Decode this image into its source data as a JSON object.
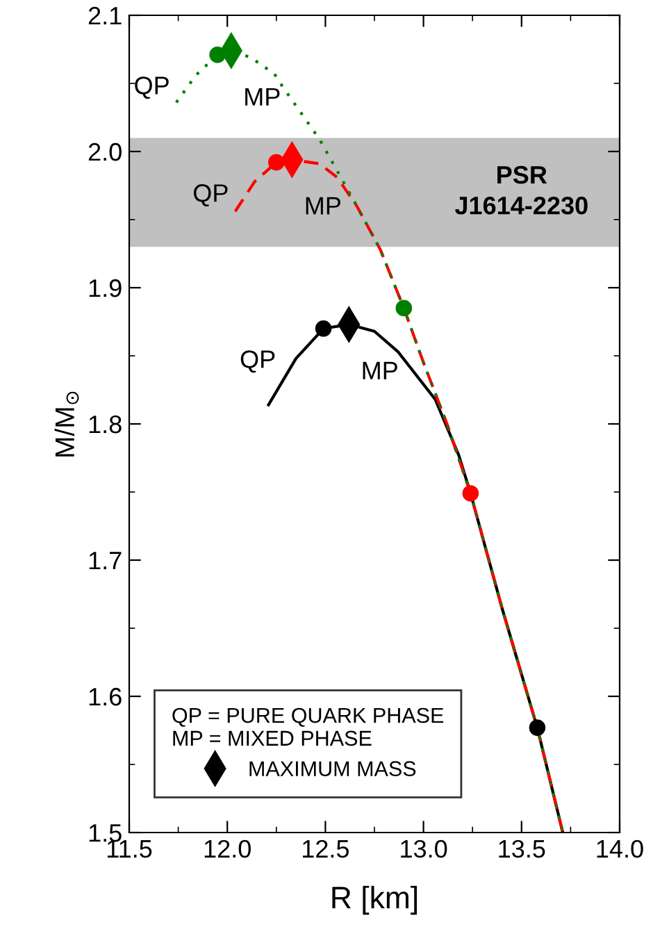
{
  "chart_data": {
    "type": "line",
    "xlabel": "R [km]",
    "ylabel": "M/M$_{⊙}$",
    "xlim": [
      11.5,
      14.0
    ],
    "xticks": [
      11.5,
      {
        "value": 12,
        "label": "12.0"
      },
      12.5,
      {
        "value": 13,
        "label": "13.0"
      },
      13.5,
      {
        "value": 14,
        "label": "14.0"
      }
    ],
    "ylim": [
      1.5,
      2.1
    ],
    "yticks": [
      1.5,
      1.6,
      1.7,
      1.8,
      1.9,
      {
        "value": 2,
        "label": "2.0"
      },
      2.1
    ],
    "grid": false,
    "legend": "bottom left",
    "series": [
      {
        "line_style": "solid",
        "color": "#000000",
        "x": [
          12.21,
          12.35,
          12.49,
          12.62,
          12.75,
          12.87,
          13.06,
          13.18,
          13.24,
          13.4,
          13.58,
          13.71
        ],
        "values": [
          1.814,
          1.848,
          1.87,
          1.873,
          1.868,
          1.853,
          1.818,
          1.777,
          1.749,
          1.665,
          1.577,
          1.5
        ]
      },
      {
        "line_style": "dashed",
        "color": "#ff0000",
        "x": [
          12.04,
          12.14,
          12.25,
          12.33,
          12.47,
          12.56,
          12.66,
          12.78,
          12.9,
          13.0,
          13.12,
          13.24,
          13.4,
          13.58,
          13.71
        ],
        "values": [
          1.956,
          1.978,
          1.992,
          1.994,
          1.991,
          1.981,
          1.96,
          1.928,
          1.885,
          1.845,
          1.8,
          1.749,
          1.665,
          1.577,
          1.5
        ]
      },
      {
        "line_style": "dotted",
        "color": "#008000",
        "x": [
          11.74,
          11.84,
          11.95,
          12.02,
          12.12,
          12.24,
          12.28,
          12.47,
          12.66,
          12.78,
          12.9,
          13.0,
          13.12,
          13.24,
          13.4,
          13.58,
          13.71
        ],
        "values": [
          2.036,
          2.056,
          2.071,
          2.074,
          2.069,
          2.057,
          2.048,
          2.009,
          1.96,
          1.928,
          1.885,
          1.845,
          1.8,
          1.749,
          1.665,
          1.577,
          1.5
        ]
      },
      {
        "type": "scatter",
        "marker": "circle",
        "color": "#000000",
        "x": [
          12.49,
          13.58
        ],
        "values": [
          1.87,
          1.577
        ]
      },
      {
        "type": "scatter",
        "marker": "circle",
        "color": "#ff0000",
        "x": [
          12.25,
          13.24
        ],
        "values": [
          1.992,
          1.749
        ]
      },
      {
        "type": "scatter",
        "marker": "circle",
        "color": "#008000",
        "x": [
          11.95,
          12.9
        ],
        "values": [
          2.071,
          1.885
        ]
      },
      {
        "type": "scatter",
        "marker": "diamond",
        "name": "MAXIMUM MASS",
        "color": "#000000",
        "x": [
          12.62
        ],
        "values": [
          1.873
        ]
      },
      {
        "type": "scatter",
        "marker": "diamond",
        "color": "#ff0000",
        "x": [
          12.33
        ],
        "values": [
          1.994
        ]
      },
      {
        "type": "scatter",
        "marker": "diamond",
        "color": "#008000",
        "x": [
          12.02
        ],
        "values": [
          2.074
        ]
      }
    ],
    "bands": [
      {
        "axis": "y",
        "from": 1.93,
        "to": 2.01,
        "label": "PSR\nJ1614-2230",
        "color": "#c0c0c0"
      }
    ],
    "annotations": [
      "QP = PURE QUARK PHASE",
      "MP = MIXED PHASE",
      {
        "text": "QP",
        "x": 11.95,
        "y": 2.071
      },
      {
        "text": "MP",
        "x": 12.02,
        "y": 2.074
      },
      {
        "text": "QP",
        "x": 12.25,
        "y": 1.992
      },
      {
        "text": "MP",
        "x": 12.33,
        "y": 1.994
      },
      {
        "text": "QP",
        "x": 12.49,
        "y": 1.87
      },
      {
        "text": "MP",
        "x": 12.62,
        "y": 1.873
      }
    ]
  }
}
